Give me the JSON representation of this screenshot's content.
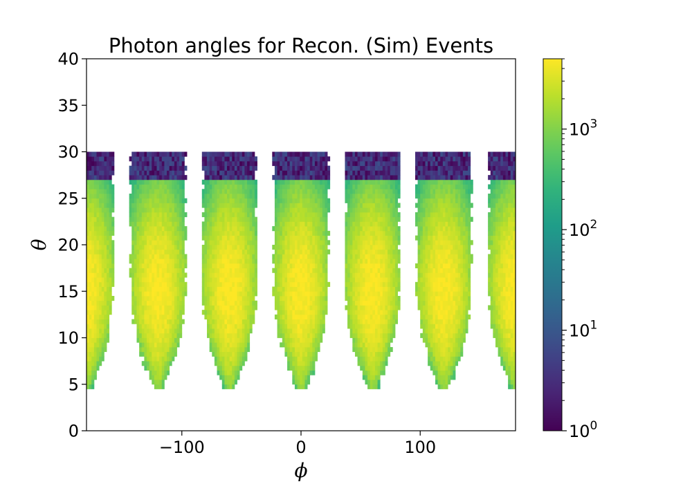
{
  "chart_data": {
    "type": "heatmap",
    "title": "Photon angles for Recon. (Sim) Events",
    "xlabel": "ϕ",
    "ylabel": "θ",
    "xlim": [
      -180,
      180
    ],
    "ylim": [
      0,
      40
    ],
    "x_ticks": [
      -100,
      0,
      100
    ],
    "y_ticks": [
      0,
      5,
      10,
      15,
      20,
      25,
      30,
      35,
      40
    ],
    "colormap": "viridis",
    "color_scale": "log",
    "colorbar_range": [
      1,
      5000
    ],
    "colorbar_ticks": [
      {
        "base": "10",
        "exp": "0",
        "value": 1
      },
      {
        "base": "10",
        "exp": "1",
        "value": 10
      },
      {
        "base": "10",
        "exp": "2",
        "value": 100
      },
      {
        "base": "10",
        "exp": "3",
        "value": 1000
      }
    ],
    "lobes": [
      {
        "phi_center": -180,
        "peak_theta": 15,
        "peak_count": 5000
      },
      {
        "phi_center": -120,
        "peak_theta": 15,
        "peak_count": 5000
      },
      {
        "phi_center": -60,
        "peak_theta": 15,
        "peak_count": 5000
      },
      {
        "phi_center": 0,
        "peak_theta": 15,
        "peak_count": 5000
      },
      {
        "phi_center": 60,
        "peak_theta": 15,
        "peak_count": 5000
      },
      {
        "phi_center": 120,
        "peak_theta": 15,
        "peak_count": 5000
      },
      {
        "phi_center": 180,
        "peak_theta": 15,
        "peak_count": 5000
      }
    ],
    "populated_theta_range": [
      4.5,
      30
    ],
    "grid": false
  }
}
